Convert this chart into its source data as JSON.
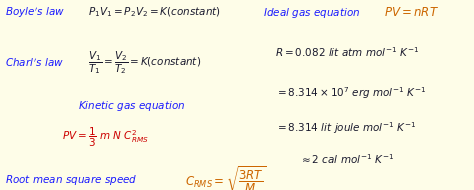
{
  "bg_color": "#fefde8",
  "blue": "#1a1aff",
  "orange": "#cc6600",
  "red": "#cc0000",
  "black": "#1a1a2e",
  "figsize": [
    4.74,
    1.9
  ],
  "dpi": 100
}
